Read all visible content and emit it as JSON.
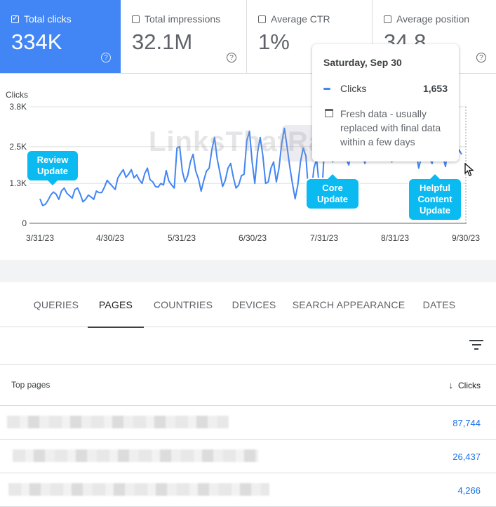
{
  "metrics": [
    {
      "label": "Total clicks",
      "value": "334K",
      "checked": true
    },
    {
      "label": "Total impressions",
      "value": "32.1M",
      "checked": false
    },
    {
      "label": "Average CTR",
      "value": "1%",
      "checked": false
    },
    {
      "label": "Average position",
      "value": "34.8",
      "checked": false
    }
  ],
  "chart": {
    "ylabel": "Clicks",
    "y_ticks": [
      "3.8K",
      "2.5K",
      "1.3K",
      "0"
    ],
    "x_ticks": [
      "3/31/23",
      "4/30/23",
      "5/31/23",
      "6/30/23",
      "7/31/23",
      "8/31/23",
      "9/30/23"
    ],
    "line_color": "#4285f4",
    "watermark": "LinksThatRank"
  },
  "chart_data": {
    "type": "line",
    "ylabel": "Clicks",
    "ylim": [
      0,
      3800
    ],
    "x_ticks": [
      "3/31/23",
      "4/30/23",
      "5/31/23",
      "6/30/23",
      "7/31/23",
      "8/31/23",
      "9/30/23"
    ],
    "series": [
      {
        "name": "Clicks",
        "values": [
          800,
          580,
          620,
          750,
          920,
          1020,
          950,
          780,
          1050,
          1150,
          980,
          900,
          820,
          1100,
          1150,
          950,
          700,
          780,
          920,
          860,
          780,
          1050,
          1000,
          1000,
          1180,
          1400,
          1300,
          1200,
          1100,
          1480,
          1620,
          1750,
          1500,
          1600,
          1750,
          1480,
          1580,
          1420,
          1300,
          1620,
          1800,
          1420,
          1350,
          1200,
          1180,
          1300,
          1250,
          1720,
          1380,
          1250,
          1150,
          2450,
          2500,
          1700,
          1350,
          1550,
          2000,
          2250,
          1700,
          1450,
          1050,
          1400,
          1700,
          1800,
          2400,
          2800,
          2100,
          1650,
          1200,
          1400,
          1800,
          1950,
          1500,
          1150,
          1250,
          1550,
          1600,
          2700,
          3000,
          2000,
          1300,
          2300,
          2800,
          2200,
          1300,
          1350,
          1800,
          2000,
          1350,
          1800,
          2600,
          3100,
          2500,
          1850,
          1300,
          800,
          1250,
          2000,
          2450,
          2200,
          1000,
          1000,
          1800,
          2100,
          1200,
          1000,
          2600,
          2800,
          2300,
          2000,
          2450,
          2800,
          2950,
          2500,
          2100,
          1900,
          2400,
          2600,
          2700,
          2600,
          2200,
          1950,
          2500,
          2750,
          2950,
          2450,
          2150,
          2250,
          2850,
          3150,
          2750,
          2000,
          2350,
          2550,
          2900,
          2400,
          2050,
          2450,
          2800,
          2700,
          2400,
          1800,
          2150,
          2600,
          2500,
          2100,
          1950,
          2300,
          2650,
          2450,
          2200,
          1850,
          2500,
          2750,
          2350,
          2050,
          2400,
          2250
        ]
      }
    ]
  },
  "tooltip": {
    "date": "Saturday, Sep 30",
    "series_label": "Clicks",
    "series_value": "1,653",
    "note": "Fresh data - usually replaced with final data within a few days"
  },
  "callouts": {
    "review": "Review Update",
    "core": "Core Update",
    "helpful": "Helpful Content Update"
  },
  "tabs": [
    "QUERIES",
    "PAGES",
    "COUNTRIES",
    "DEVICES",
    "SEARCH APPEARANCE",
    "DATES"
  ],
  "active_tab": "PAGES",
  "table": {
    "col_left": "Top pages",
    "col_right": "Clicks",
    "rows": [
      {
        "clicks": "87,744"
      },
      {
        "clicks": "26,437"
      },
      {
        "clicks": "4,266"
      }
    ]
  },
  "colors": {
    "accent": "#4285f4",
    "callout": "#0abaf0",
    "link": "#1a73e8"
  }
}
